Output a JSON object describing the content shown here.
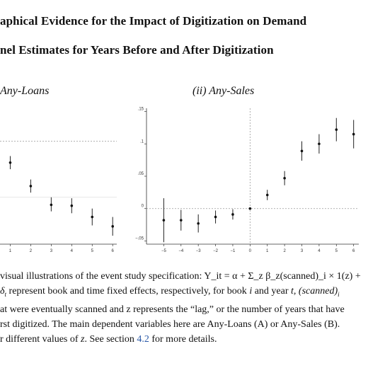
{
  "header": {
    "title": "aphical Evidence for the Impact of Digitization on Demand",
    "subtitle": "nel Estimates for Years Before and After Digitization"
  },
  "panels": {
    "left_title": "Any-Loans",
    "right_title": "(ii) Any-Sales"
  },
  "chart_data": [
    {
      "type": "scatter",
      "title": "Any-Loans",
      "x": [
        1,
        2,
        3,
        4,
        5,
        6
      ],
      "tick_labels_x": [
        "1",
        "2",
        "3",
        "4",
        "5",
        "6"
      ],
      "series": [
        {
          "values": [
            0.062,
            0.037,
            0.017,
            0.016,
            0.004,
            -0.006
          ],
          "ci_low": [
            0.055,
            0.03,
            0.01,
            0.008,
            -0.005,
            -0.016
          ],
          "ci_high": [
            0.069,
            0.044,
            0.025,
            0.024,
            0.013,
            0.004
          ]
        }
      ],
      "reference_line_y": 0.085,
      "secondary_gridline_y": 0.025,
      "xlim": [
        0.5,
        6.2
      ],
      "ylim": [
        -0.025,
        0.12
      ],
      "grid": false
    },
    {
      "type": "scatter",
      "title": "(ii) Any-Sales",
      "x": [
        -5,
        -4,
        -3,
        -2,
        -1,
        0,
        1,
        2,
        3,
        4,
        5,
        6
      ],
      "tick_labels_x": [
        "−5",
        "−4",
        "−3",
        "−2",
        "−1",
        "0",
        "1",
        "2",
        "3",
        "4",
        "5",
        "6"
      ],
      "tick_labels_y": [
        "−.05",
        "0",
        ".05",
        ".1",
        ".15"
      ],
      "y_ticks": [
        -0.05,
        0,
        0.05,
        0.1,
        0.15
      ],
      "series": [
        {
          "values": [
            -0.018,
            -0.018,
            -0.023,
            -0.013,
            -0.009,
            0,
            0.021,
            0.047,
            0.089,
            0.1,
            0.122,
            0.115
          ],
          "ci_low": [
            -0.052,
            -0.034,
            -0.037,
            -0.023,
            -0.017,
            0,
            0.013,
            0.036,
            0.074,
            0.085,
            0.104,
            0.093
          ],
          "ci_high": [
            0.016,
            -0.002,
            -0.009,
            -0.003,
            -0.001,
            0,
            0.029,
            0.058,
            0.104,
            0.115,
            0.14,
            0.137
          ]
        }
      ],
      "reference_line_x": 0,
      "reference_line_y": 0,
      "xlim": [
        -6,
        6.3
      ],
      "ylim": [
        -0.055,
        0.155
      ],
      "grid": false
    }
  ],
  "caption": {
    "l1_a": "visual illustrations of the event study specification: ",
    "l1_math": "Y_it = α + Σ_z β_z(scanned)_i × 1(z) +",
    "l2_a": "represent book and time fixed effects, respectively, for book ",
    "l2_i": "i",
    "l2_b": " and year ",
    "l2_t": "t",
    "l2_c": ", (scanned)",
    "l2_d": "i",
    "l3": "at were eventually scanned and z represents the “lag,” or the number of years that have",
    "l4": "rst digitized. The main dependent variables here are Any-Loans (A) or Any-Sales (B).",
    "l5_a": "r different values of ",
    "l5_z": "z",
    "l5_b": ". See section ",
    "l5_ref": "4.2",
    "l5_c": " for more details."
  }
}
